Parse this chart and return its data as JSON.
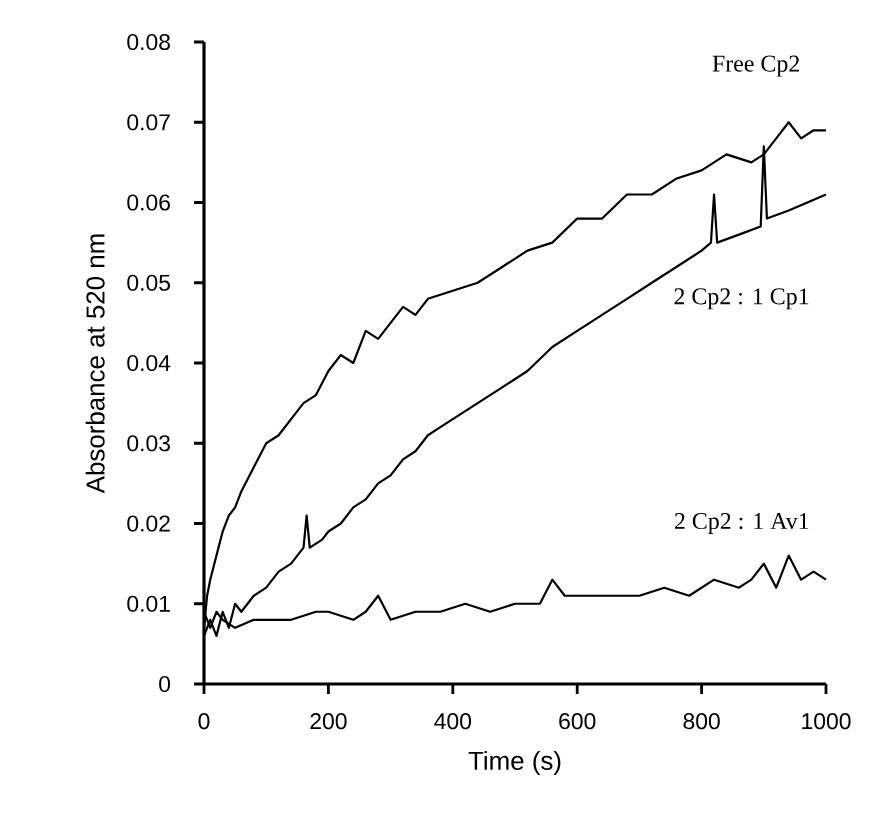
{
  "chart_data": {
    "type": "line",
    "xlabel": "Time (s)",
    "ylabel": "Absorbance at 520 nm",
    "xlim": [
      0,
      1000
    ],
    "ylim": [
      0,
      0.08
    ],
    "xticks": [
      0,
      200,
      400,
      600,
      800,
      1000
    ],
    "yticks": [
      0,
      0.01,
      0.02,
      0.03,
      0.04,
      0.05,
      0.06,
      0.07,
      0.08
    ],
    "grid": false,
    "legend": false,
    "marker": "none",
    "line_style": "solid",
    "series": [
      {
        "name": "Free Cp2",
        "color": "#000000",
        "x": [
          0,
          5,
          10,
          20,
          30,
          40,
          50,
          60,
          80,
          100,
          120,
          140,
          160,
          180,
          200,
          220,
          240,
          260,
          280,
          300,
          320,
          340,
          360,
          400,
          440,
          480,
          520,
          560,
          600,
          640,
          680,
          720,
          760,
          800,
          840,
          880,
          900,
          920,
          940,
          960,
          980,
          1000
        ],
        "values": [
          0.007,
          0.011,
          0.013,
          0.016,
          0.019,
          0.021,
          0.022,
          0.024,
          0.027,
          0.03,
          0.031,
          0.033,
          0.035,
          0.036,
          0.039,
          0.041,
          0.04,
          0.044,
          0.043,
          0.045,
          0.047,
          0.046,
          0.048,
          0.049,
          0.05,
          0.052,
          0.054,
          0.055,
          0.058,
          0.058,
          0.061,
          0.061,
          0.063,
          0.064,
          0.066,
          0.065,
          0.066,
          0.068,
          0.07,
          0.068,
          0.069,
          0.069
        ]
      },
      {
        "name": "2 Cp2 : 1 Cp1",
        "color": "#000000",
        "x": [
          0,
          10,
          20,
          30,
          40,
          50,
          60,
          80,
          100,
          120,
          140,
          160,
          165,
          170,
          190,
          200,
          220,
          240,
          260,
          280,
          300,
          320,
          340,
          360,
          380,
          400,
          440,
          480,
          520,
          560,
          600,
          640,
          680,
          720,
          760,
          800,
          815,
          820,
          825,
          860,
          895,
          900,
          905,
          940,
          970,
          1000
        ],
        "values": [
          0.006,
          0.008,
          0.006,
          0.009,
          0.007,
          0.01,
          0.009,
          0.011,
          0.012,
          0.014,
          0.015,
          0.017,
          0.021,
          0.017,
          0.018,
          0.019,
          0.02,
          0.022,
          0.023,
          0.025,
          0.026,
          0.028,
          0.029,
          0.031,
          0.032,
          0.033,
          0.035,
          0.037,
          0.039,
          0.042,
          0.044,
          0.046,
          0.048,
          0.05,
          0.052,
          0.054,
          0.055,
          0.061,
          0.055,
          0.056,
          0.057,
          0.067,
          0.058,
          0.059,
          0.06,
          0.061
        ]
      },
      {
        "name": "2 Cp2 : 1 Av1",
        "color": "#000000",
        "x": [
          0,
          10,
          20,
          30,
          50,
          80,
          100,
          140,
          180,
          200,
          240,
          260,
          280,
          300,
          340,
          380,
          420,
          460,
          500,
          540,
          560,
          580,
          620,
          660,
          700,
          740,
          780,
          820,
          860,
          880,
          900,
          920,
          940,
          960,
          980,
          1000
        ],
        "values": [
          0.009,
          0.007,
          0.009,
          0.008,
          0.007,
          0.008,
          0.008,
          0.008,
          0.009,
          0.009,
          0.008,
          0.009,
          0.011,
          0.008,
          0.009,
          0.009,
          0.01,
          0.009,
          0.01,
          0.01,
          0.013,
          0.011,
          0.011,
          0.011,
          0.011,
          0.012,
          0.011,
          0.013,
          0.012,
          0.013,
          0.015,
          0.012,
          0.016,
          0.013,
          0.014,
          0.013
        ]
      }
    ]
  }
}
